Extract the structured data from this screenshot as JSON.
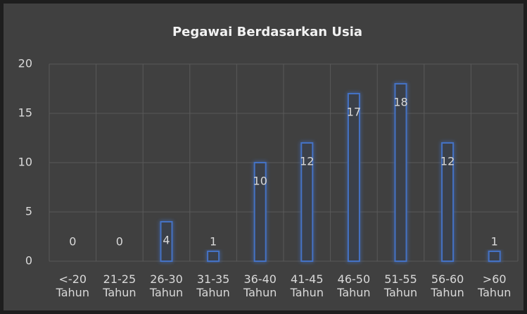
{
  "chart_data": {
    "type": "bar",
    "title": "Pegawai Berdasarkan Usia",
    "categories": [
      "<-20 Tahun",
      "21-25 Tahun",
      "26-30 Tahun",
      "31-35 Tahun",
      "36-40 Tahun",
      "41-45 Tahun",
      "46-50 Tahun",
      "51-55 Tahun",
      "56-60 Tahun",
      ">60 Tahun"
    ],
    "values": [
      0,
      0,
      4,
      1,
      10,
      12,
      17,
      18,
      12,
      1
    ],
    "color": "#4472c4",
    "ylim": [
      0,
      20
    ],
    "yticks": [
      0,
      5,
      10,
      15,
      20
    ],
    "grid": true
  }
}
